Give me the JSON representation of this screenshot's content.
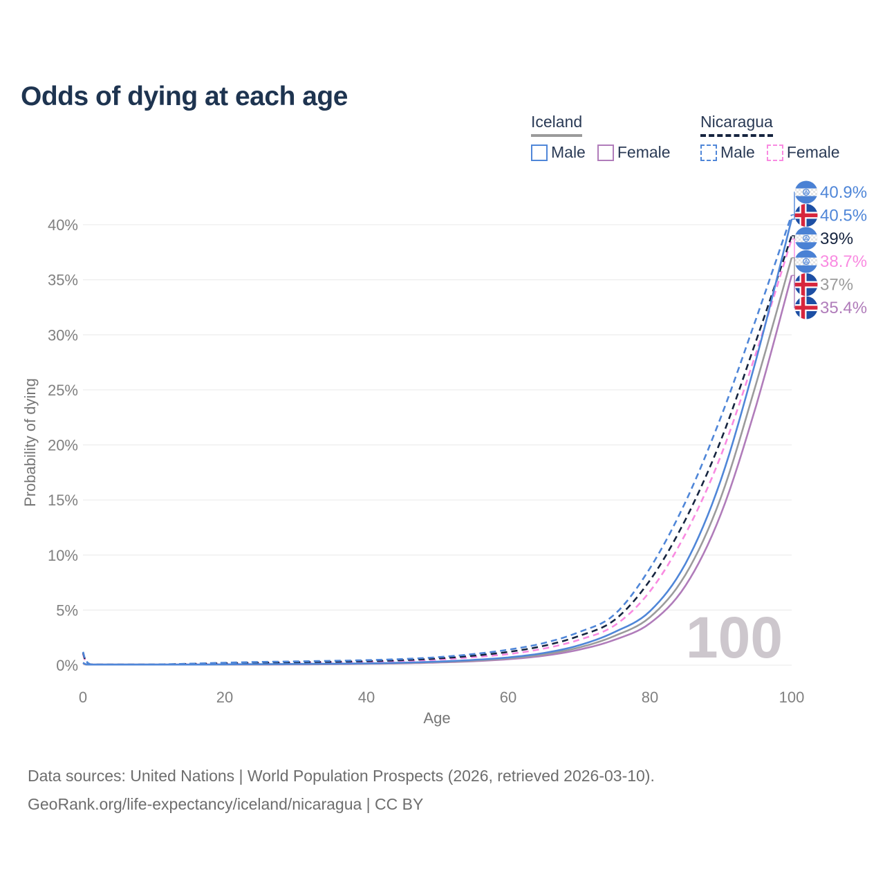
{
  "title": "Odds of dying at each age",
  "legend": {
    "groups": [
      {
        "name": "Iceland",
        "line_style": "solid",
        "line_color": "#9b9b9b",
        "items": [
          {
            "label": "Male",
            "color": "#4f86d8",
            "dashed": false
          },
          {
            "label": "Female",
            "color": "#b07cba",
            "dashed": false
          }
        ]
      },
      {
        "name": "Nicaragua",
        "line_style": "dashed",
        "line_color": "#16243f",
        "items": [
          {
            "label": "Male",
            "color": "#4f86d8",
            "dashed": true
          },
          {
            "label": "Female",
            "color": "#f98ae1",
            "dashed": true
          }
        ]
      }
    ]
  },
  "chart_data": {
    "type": "line",
    "title": "Odds of dying at each age",
    "xlabel": "Age",
    "ylabel": "Probability of dying",
    "xlim": [
      0,
      100
    ],
    "ylim": [
      0,
      40
    ],
    "x_ticks": [
      0,
      20,
      40,
      60,
      80,
      100
    ],
    "y_ticks": [
      0,
      5,
      10,
      15,
      20,
      25,
      30,
      35,
      40
    ],
    "grid": "horizontal",
    "watermark": "100",
    "x": [
      0,
      1,
      5,
      10,
      15,
      20,
      25,
      30,
      35,
      40,
      45,
      50,
      55,
      60,
      65,
      70,
      75,
      80,
      85,
      90,
      95,
      100
    ],
    "series": [
      {
        "name": "Nicaragua Male",
        "flag": "nicaragua",
        "color": "#4f86d8",
        "dash": true,
        "end_label": "40.9%",
        "values": [
          1.2,
          0.09,
          0.05,
          0.06,
          0.13,
          0.22,
          0.29,
          0.34,
          0.39,
          0.45,
          0.55,
          0.72,
          1.0,
          1.4,
          2.0,
          3.0,
          4.6,
          8.8,
          14.8,
          22.5,
          31.5,
          40.9
        ]
      },
      {
        "name": "Iceland Male",
        "flag": "iceland",
        "color": "#4f86d8",
        "dash": false,
        "end_label": "40.5%",
        "values": [
          0.22,
          0.02,
          0.01,
          0.012,
          0.035,
          0.07,
          0.09,
          0.11,
          0.13,
          0.16,
          0.22,
          0.32,
          0.47,
          0.7,
          1.1,
          1.8,
          3.0,
          4.9,
          9.2,
          16.8,
          27.8,
          40.5
        ]
      },
      {
        "name": "Nicaragua Both sexes",
        "flag": "nicaragua",
        "color": "#16243f",
        "dash": true,
        "end_label": "39%",
        "values": [
          1.1,
          0.08,
          0.045,
          0.05,
          0.11,
          0.17,
          0.22,
          0.26,
          0.3,
          0.36,
          0.45,
          0.6,
          0.85,
          1.2,
          1.75,
          2.65,
          4.1,
          7.7,
          13.2,
          20.4,
          29.5,
          39.0
        ]
      },
      {
        "name": "Nicaragua Female",
        "flag": "nicaragua",
        "color": "#f98ae1",
        "dash": true,
        "end_label": "38.7%",
        "values": [
          1.0,
          0.07,
          0.04,
          0.045,
          0.09,
          0.12,
          0.16,
          0.2,
          0.25,
          0.3,
          0.38,
          0.5,
          0.72,
          1.0,
          1.5,
          2.3,
          3.6,
          6.7,
          11.9,
          19.0,
          28.4,
          38.7
        ]
      },
      {
        "name": "Iceland Both sexes",
        "flag": "iceland",
        "color": "#9b9b9b",
        "dash": false,
        "end_label": "37%",
        "values": [
          0.19,
          0.017,
          0.009,
          0.01,
          0.03,
          0.055,
          0.07,
          0.09,
          0.11,
          0.14,
          0.19,
          0.28,
          0.41,
          0.62,
          0.97,
          1.6,
          2.65,
          4.35,
          8.2,
          15.2,
          25.6,
          37.0
        ]
      },
      {
        "name": "Iceland Female",
        "flag": "iceland",
        "color": "#b07cba",
        "dash": false,
        "end_label": "35.4%",
        "values": [
          0.16,
          0.014,
          0.008,
          0.009,
          0.022,
          0.04,
          0.05,
          0.065,
          0.085,
          0.12,
          0.16,
          0.24,
          0.35,
          0.54,
          0.85,
          1.4,
          2.3,
          3.8,
          7.2,
          13.7,
          23.6,
          35.4
        ]
      }
    ]
  },
  "footer": {
    "line1": "Data sources: United Nations | World Population Prospects (2026, retrieved 2026-03-10).",
    "line2": "GeoRank.org/life-expectancy/iceland/nicaragua | CC BY"
  }
}
